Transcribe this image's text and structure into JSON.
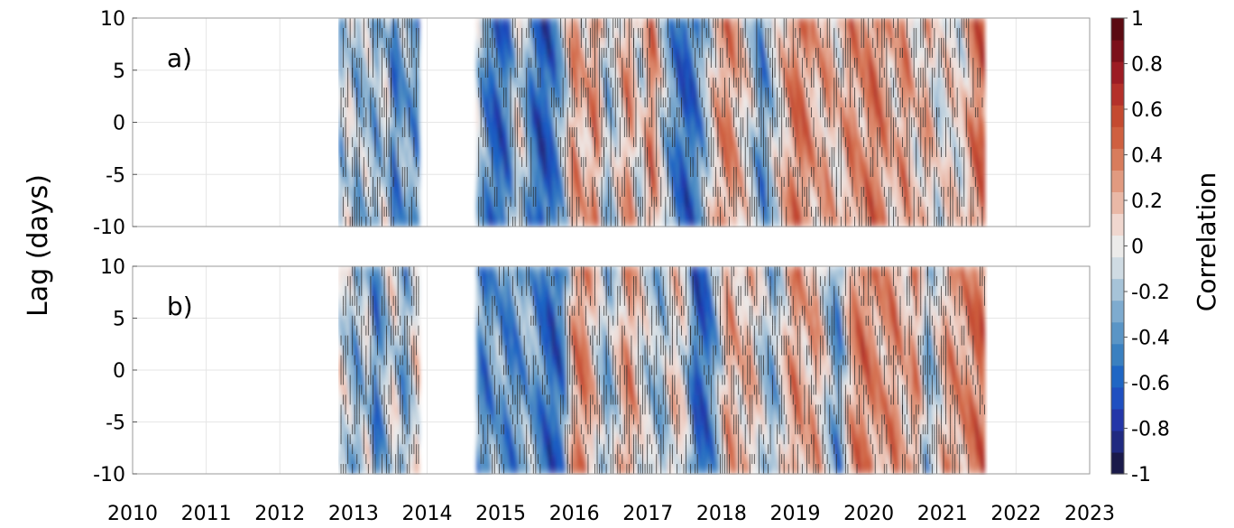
{
  "chart_data": {
    "type": "heatmap",
    "ylabel": "Lag (days)",
    "colorbar": {
      "label": "Correlation",
      "range": [
        -1,
        1
      ],
      "ticks": [
        "1",
        "0.8",
        "0.6",
        "0.4",
        "0.2",
        "0",
        "-0.2",
        "-0.4",
        "-0.6",
        "-0.8",
        "-1"
      ],
      "levels": [
        -1,
        -0.9,
        -0.8,
        -0.7,
        -0.6,
        -0.5,
        -0.4,
        -0.3,
        -0.2,
        -0.1,
        0,
        0.1,
        0.2,
        0.3,
        0.4,
        0.5,
        0.6,
        0.7,
        0.8,
        0.9,
        1
      ],
      "colors": [
        "#1a1a4a",
        "#202a80",
        "#2436a8",
        "#1f4fc0",
        "#1f66c4",
        "#3a80c0",
        "#5a95c6",
        "#7eabcf",
        "#a6c3d8",
        "#cfdbe3",
        "#ecebea",
        "#f0d7cf",
        "#e9b8a6",
        "#e19a80",
        "#d87c5c",
        "#cf6040",
        "#c44a30",
        "#b4302a",
        "#9c1c24",
        "#7c101a",
        "#5a0a12"
      ]
    },
    "x_ticks": [
      "2010",
      "2011",
      "2012",
      "2013",
      "2014",
      "2015",
      "2016",
      "2017",
      "2018",
      "2019",
      "2020",
      "2021",
      "2022",
      "2023"
    ],
    "xlim": [
      2010,
      2023
    ],
    "y_ticks": [
      "10",
      "5",
      "0",
      "-5",
      "-10"
    ],
    "ylim": [
      -10,
      10
    ],
    "contour_levels": [
      -0.3,
      0,
      0.3
    ],
    "grid": true,
    "panels": [
      {
        "label": "a)",
        "data_segments": [
          [
            2012.8,
            2013.9
          ],
          [
            2014.67,
            2021.58
          ]
        ],
        "time_profile": [
          [
            2012.8,
            -0.35
          ],
          [
            2012.95,
            0.1
          ],
          [
            2013.05,
            -0.3
          ],
          [
            2013.2,
            -0.05
          ],
          [
            2013.3,
            -0.35
          ],
          [
            2013.45,
            0.05
          ],
          [
            2013.55,
            -0.55
          ],
          [
            2013.7,
            -0.2
          ],
          [
            2013.85,
            -0.4
          ],
          [
            2014.67,
            0.0
          ],
          [
            2014.8,
            -0.4
          ],
          [
            2014.95,
            -0.6
          ],
          [
            2015.1,
            -0.5
          ],
          [
            2015.25,
            0.1
          ],
          [
            2015.4,
            -0.4
          ],
          [
            2015.55,
            -0.65
          ],
          [
            2015.7,
            -0.55
          ],
          [
            2015.85,
            -0.2
          ],
          [
            2016.0,
            0.45
          ],
          [
            2016.15,
            0.15
          ],
          [
            2016.3,
            0.5
          ],
          [
            2016.45,
            -0.25
          ],
          [
            2016.6,
            0.05
          ],
          [
            2016.75,
            0.45
          ],
          [
            2016.9,
            -0.1
          ],
          [
            2017.05,
            0.55
          ],
          [
            2017.2,
            -0.05
          ],
          [
            2017.35,
            -0.4
          ],
          [
            2017.5,
            -0.6
          ],
          [
            2017.65,
            -0.5
          ],
          [
            2017.8,
            -0.15
          ],
          [
            2017.95,
            0.3
          ],
          [
            2018.1,
            0.45
          ],
          [
            2018.25,
            0.2
          ],
          [
            2018.4,
            0.0
          ],
          [
            2018.55,
            -0.45
          ],
          [
            2018.7,
            -0.1
          ],
          [
            2018.85,
            0.2
          ],
          [
            2019.0,
            0.5
          ],
          [
            2019.15,
            0.45
          ],
          [
            2019.3,
            0.2
          ],
          [
            2019.45,
            0.35
          ],
          [
            2019.6,
            0.1
          ],
          [
            2019.75,
            0.45
          ],
          [
            2019.9,
            0.3
          ],
          [
            2020.05,
            0.5
          ],
          [
            2020.2,
            0.4
          ],
          [
            2020.35,
            0.15
          ],
          [
            2020.5,
            0.45
          ],
          [
            2020.65,
            0.05
          ],
          [
            2020.8,
            0.35
          ],
          [
            2020.95,
            -0.1
          ],
          [
            2021.1,
            0.2
          ],
          [
            2021.25,
            0.0
          ],
          [
            2021.4,
            0.4
          ],
          [
            2021.58,
            0.6
          ]
        ]
      },
      {
        "label": "b)",
        "data_segments": [
          [
            2012.8,
            2013.9
          ],
          [
            2014.67,
            2021.58
          ]
        ],
        "time_profile": [
          [
            2012.8,
            0.05
          ],
          [
            2012.95,
            -0.1
          ],
          [
            2013.05,
            -0.35
          ],
          [
            2013.2,
            0.05
          ],
          [
            2013.3,
            -0.55
          ],
          [
            2013.45,
            -0.15
          ],
          [
            2013.55,
            0.1
          ],
          [
            2013.7,
            -0.4
          ],
          [
            2013.85,
            0.15
          ],
          [
            2014.67,
            -0.3
          ],
          [
            2014.8,
            -0.5
          ],
          [
            2014.95,
            -0.2
          ],
          [
            2015.1,
            -0.45
          ],
          [
            2015.25,
            -0.35
          ],
          [
            2015.4,
            -0.2
          ],
          [
            2015.55,
            -0.45
          ],
          [
            2015.7,
            -0.6
          ],
          [
            2015.85,
            -0.5
          ],
          [
            2016.0,
            0.4
          ],
          [
            2016.15,
            0.45
          ],
          [
            2016.3,
            0.1
          ],
          [
            2016.45,
            -0.3
          ],
          [
            2016.6,
            0.1
          ],
          [
            2016.75,
            0.45
          ],
          [
            2016.9,
            0.05
          ],
          [
            2017.05,
            -0.1
          ],
          [
            2017.2,
            -0.25
          ],
          [
            2017.35,
            0.2
          ],
          [
            2017.5,
            0.05
          ],
          [
            2017.65,
            -0.6
          ],
          [
            2017.8,
            -0.55
          ],
          [
            2017.95,
            -0.2
          ],
          [
            2018.1,
            0.4
          ],
          [
            2018.25,
            0.15
          ],
          [
            2018.4,
            0.3
          ],
          [
            2018.55,
            -0.05
          ],
          [
            2018.7,
            -0.3
          ],
          [
            2018.85,
            0.1
          ],
          [
            2019.0,
            0.45
          ],
          [
            2019.15,
            0.2
          ],
          [
            2019.3,
            0.35
          ],
          [
            2019.45,
            -0.1
          ],
          [
            2019.6,
            -0.45
          ],
          [
            2019.75,
            0.3
          ],
          [
            2019.9,
            0.5
          ],
          [
            2020.05,
            0.4
          ],
          [
            2020.2,
            0.3
          ],
          [
            2020.35,
            0.45
          ],
          [
            2020.5,
            0.15
          ],
          [
            2020.65,
            0.45
          ],
          [
            2020.8,
            -0.3
          ],
          [
            2020.95,
            0.05
          ],
          [
            2021.1,
            0.4
          ],
          [
            2021.25,
            0.3
          ],
          [
            2021.4,
            0.45
          ],
          [
            2021.58,
            0.55
          ]
        ]
      }
    ]
  }
}
